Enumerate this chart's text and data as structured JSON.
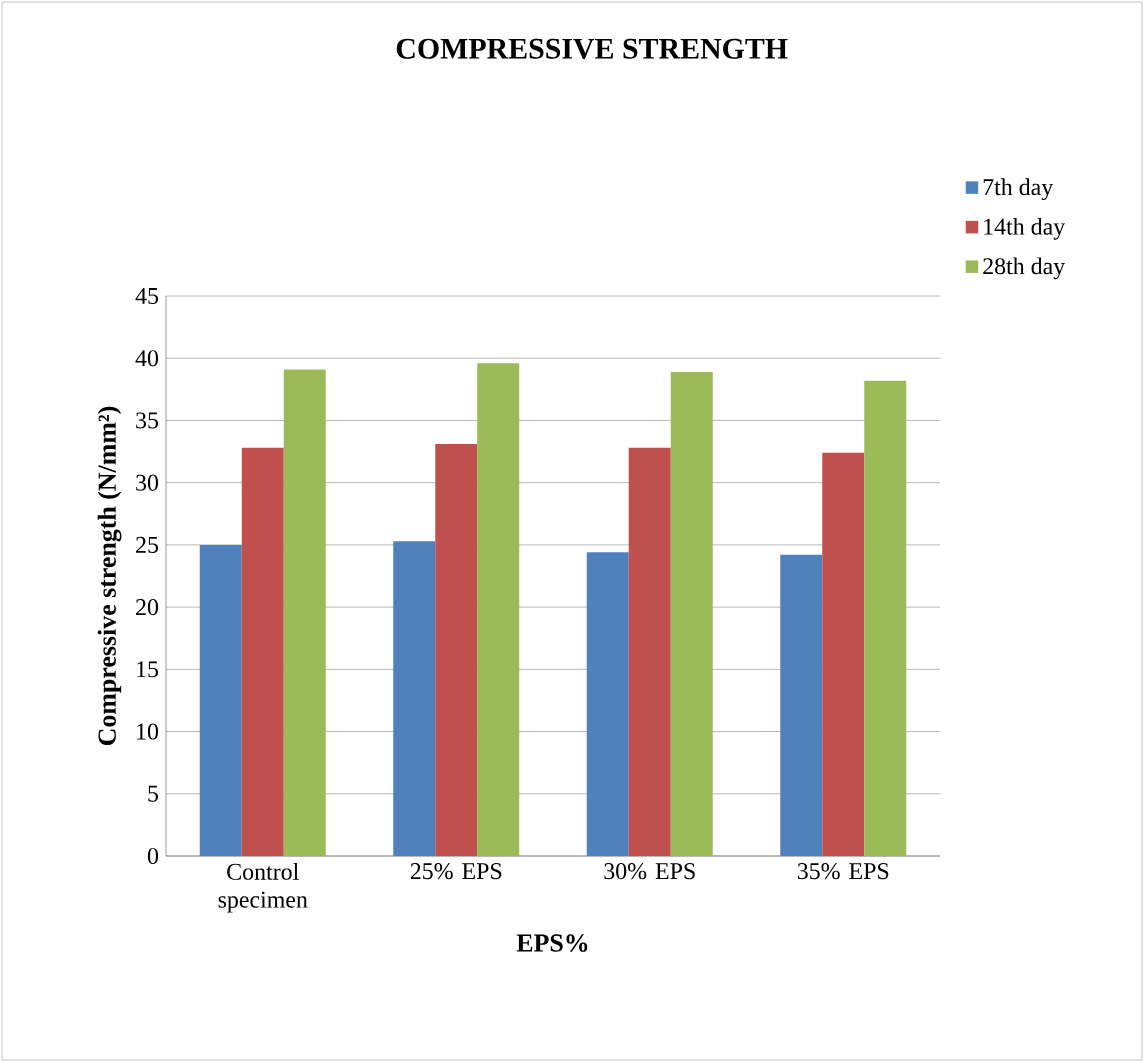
{
  "chart_data": {
    "type": "bar",
    "title": "COMPRESSIVE STRENGTH",
    "xlabel": "EPS%",
    "ylabel": "Compressive strength (N/mm²)",
    "categories": [
      "Control specimen",
      "25% EPS",
      "30% EPS",
      "35% EPS"
    ],
    "series": [
      {
        "name": "7th day",
        "color": "#4f81bd",
        "values": [
          25.0,
          25.3,
          24.4,
          24.2
        ]
      },
      {
        "name": "14th day",
        "color": "#c0504d",
        "values": [
          32.8,
          33.1,
          32.8,
          32.4
        ]
      },
      {
        "name": "28th day",
        "color": "#9bbb59",
        "values": [
          39.1,
          39.6,
          38.9,
          38.2
        ]
      }
    ],
    "ylim": [
      0,
      45
    ],
    "yticks": [
      0,
      5,
      10,
      15,
      20,
      25,
      30,
      35,
      40,
      45
    ],
    "grid": "y",
    "legend": "top right"
  }
}
